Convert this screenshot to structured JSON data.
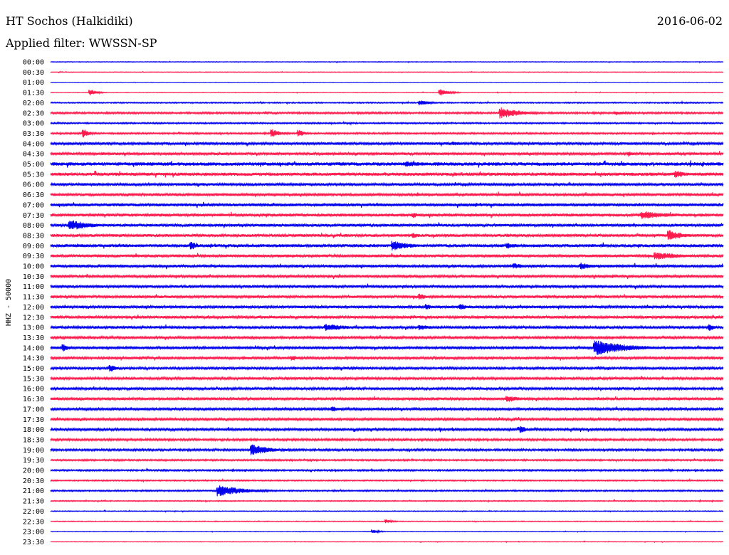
{
  "header": {
    "station": "HT Sochos (Halkidiki)",
    "filter": "Applied filter: WWSSN-SP",
    "date": "2016-06-02"
  },
  "colors": {
    "trace_a": "#0000ee",
    "trace_b": "#ff1a4d",
    "background": "#ffffff"
  },
  "chart_data": {
    "type": "line",
    "title": "HT Sochos (Halkidiki)",
    "subtitle": "Applied filter: WWSSN-SP",
    "ylabel": "HHZ - 50000",
    "xlabel": "",
    "grid": false,
    "categories": [
      "00:00",
      "00:30",
      "01:00",
      "01:30",
      "02:00",
      "02:30",
      "03:00",
      "03:30",
      "04:00",
      "04:30",
      "05:00",
      "05:30",
      "06:00",
      "06:30",
      "07:00",
      "07:30",
      "08:00",
      "08:30",
      "09:00",
      "09:30",
      "10:00",
      "10:30",
      "11:00",
      "11:30",
      "12:00",
      "12:30",
      "13:00",
      "13:30",
      "14:00",
      "14:30",
      "15:00",
      "15:30",
      "16:00",
      "16:30",
      "17:00",
      "17:30",
      "18:00",
      "18:30",
      "19:00",
      "19:30",
      "20:00",
      "20:30",
      "21:00",
      "21:30",
      "22:00",
      "22:30",
      "23:00",
      "23:30"
    ],
    "series_colors": [
      "#0000ee",
      "#ff1a4d"
    ],
    "noise_level": [
      0.3,
      0.3,
      0.2,
      0.3,
      0.6,
      0.9,
      0.7,
      0.8,
      1.3,
      1.3,
      1.7,
      1.6,
      1.3,
      1.4,
      1.5,
      1.5,
      1.4,
      1.4,
      1.5,
      1.4,
      1.4,
      1.3,
      1.3,
      1.3,
      1.3,
      1.3,
      1.3,
      1.2,
      1.3,
      1.2,
      1.1,
      1.2,
      1.2,
      1.3,
      1.2,
      1.2,
      1.2,
      1.0,
      1.0,
      0.8,
      0.8,
      0.6,
      0.7,
      0.5,
      0.4,
      0.4,
      0.3,
      0.3
    ],
    "events": [
      {
        "row": "01:30",
        "x": 0.06,
        "amp": 4,
        "dur": 0.012
      },
      {
        "row": "01:30",
        "x": 0.58,
        "amp": 5,
        "dur": 0.015
      },
      {
        "row": "02:00",
        "x": 0.55,
        "amp": 4,
        "dur": 0.015
      },
      {
        "row": "02:30",
        "x": 0.67,
        "amp": 8,
        "dur": 0.03
      },
      {
        "row": "02:30",
        "x": 0.84,
        "amp": 3,
        "dur": 0.02
      },
      {
        "row": "03:30",
        "x": 0.05,
        "amp": 6,
        "dur": 0.01
      },
      {
        "row": "03:30",
        "x": 0.33,
        "amp": 6,
        "dur": 0.015
      },
      {
        "row": "03:30",
        "x": 0.37,
        "amp": 5,
        "dur": 0.01
      },
      {
        "row": "04:00",
        "x": 0.6,
        "amp": 3,
        "dur": 0.02
      },
      {
        "row": "04:30",
        "x": 0.86,
        "amp": 4,
        "dur": 0.01
      },
      {
        "row": "05:00",
        "x": 0.53,
        "amp": 4,
        "dur": 0.04
      },
      {
        "row": "05:30",
        "x": 0.93,
        "amp": 5,
        "dur": 0.02
      },
      {
        "row": "07:30",
        "x": 0.88,
        "amp": 6,
        "dur": 0.04
      },
      {
        "row": "07:30",
        "x": 0.54,
        "amp": 4,
        "dur": 0.01
      },
      {
        "row": "08:00",
        "x": 0.03,
        "amp": 8,
        "dur": 0.03
      },
      {
        "row": "08:30",
        "x": 0.92,
        "amp": 8,
        "dur": 0.02
      },
      {
        "row": "08:30",
        "x": 0.54,
        "amp": 4,
        "dur": 0.01
      },
      {
        "row": "09:00",
        "x": 0.21,
        "amp": 6,
        "dur": 0.01
      },
      {
        "row": "09:00",
        "x": 0.51,
        "amp": 7,
        "dur": 0.03
      },
      {
        "row": "09:00",
        "x": 0.68,
        "amp": 4,
        "dur": 0.02
      },
      {
        "row": "09:30",
        "x": 0.9,
        "amp": 6,
        "dur": 0.04
      },
      {
        "row": "10:00",
        "x": 0.79,
        "amp": 5,
        "dur": 0.02
      },
      {
        "row": "10:00",
        "x": 0.69,
        "amp": 4,
        "dur": 0.02
      },
      {
        "row": "11:30",
        "x": 0.55,
        "amp": 5,
        "dur": 0.01
      },
      {
        "row": "12:00",
        "x": 0.61,
        "amp": 5,
        "dur": 0.01
      },
      {
        "row": "12:00",
        "x": 0.56,
        "amp": 4,
        "dur": 0.01
      },
      {
        "row": "13:00",
        "x": 0.41,
        "amp": 5,
        "dur": 0.04
      },
      {
        "row": "13:00",
        "x": 0.55,
        "amp": 4,
        "dur": 0.02
      },
      {
        "row": "13:00",
        "x": 0.98,
        "amp": 5,
        "dur": 0.01
      },
      {
        "row": "14:00",
        "x": 0.81,
        "amp": 11,
        "dur": 0.05
      },
      {
        "row": "14:00",
        "x": 0.02,
        "amp": 5,
        "dur": 0.01
      },
      {
        "row": "14:30",
        "x": 0.36,
        "amp": 4,
        "dur": 0.01
      },
      {
        "row": "15:00",
        "x": 0.09,
        "amp": 5,
        "dur": 0.01
      },
      {
        "row": "16:30",
        "x": 0.68,
        "amp": 5,
        "dur": 0.02
      },
      {
        "row": "17:00",
        "x": 0.42,
        "amp": 4,
        "dur": 0.01
      },
      {
        "row": "18:00",
        "x": 0.7,
        "amp": 5,
        "dur": 0.01
      },
      {
        "row": "19:00",
        "x": 0.3,
        "amp": 8,
        "dur": 0.03
      },
      {
        "row": "21:00",
        "x": 0.25,
        "amp": 8,
        "dur": 0.04
      },
      {
        "row": "23:00",
        "x": 0.48,
        "amp": 3,
        "dur": 0.01
      },
      {
        "row": "22:30",
        "x": 0.5,
        "amp": 3,
        "dur": 0.01
      }
    ]
  }
}
